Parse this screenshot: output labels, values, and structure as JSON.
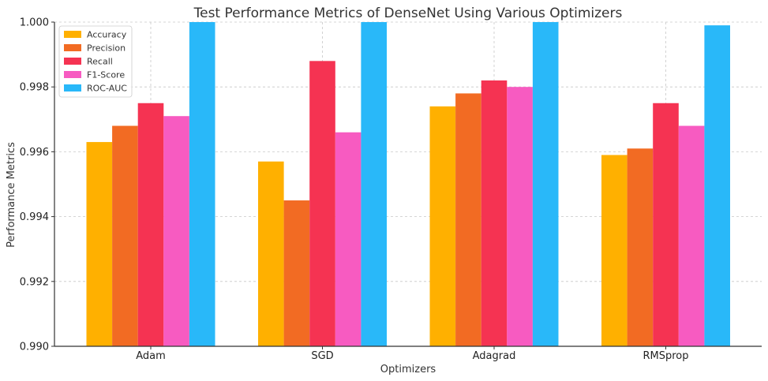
{
  "chart_data": {
    "type": "bar",
    "title": "Test Performance Metrics of DenseNet Using Various Optimizers",
    "xlabel": "Optimizers",
    "ylabel": "Performance Metrics",
    "categories": [
      "Adam",
      "SGD",
      "Adagrad",
      "RMSprop"
    ],
    "ylim": [
      0.99,
      1.0
    ],
    "yticks": [
      "0.990",
      "0.992",
      "0.994",
      "0.996",
      "0.998",
      "1.000"
    ],
    "grid": true,
    "legend_position": "top-left",
    "series": [
      {
        "name": "Accuracy",
        "color": "#FFB000",
        "values": [
          0.9963,
          0.9957,
          0.9974,
          0.9959
        ]
      },
      {
        "name": "Precision",
        "color": "#F26B23",
        "values": [
          0.9968,
          0.9945,
          0.9978,
          0.9961
        ]
      },
      {
        "name": "Recall",
        "color": "#F53352",
        "values": [
          0.9975,
          0.9988,
          0.9982,
          0.9975
        ]
      },
      {
        "name": "F1-Score",
        "color": "#F75BC1",
        "values": [
          0.9971,
          0.9966,
          0.998,
          0.9968
        ]
      },
      {
        "name": "ROC-AUC",
        "color": "#29B8F9",
        "values": [
          1.0,
          1.0,
          1.0,
          0.9999
        ]
      }
    ]
  }
}
